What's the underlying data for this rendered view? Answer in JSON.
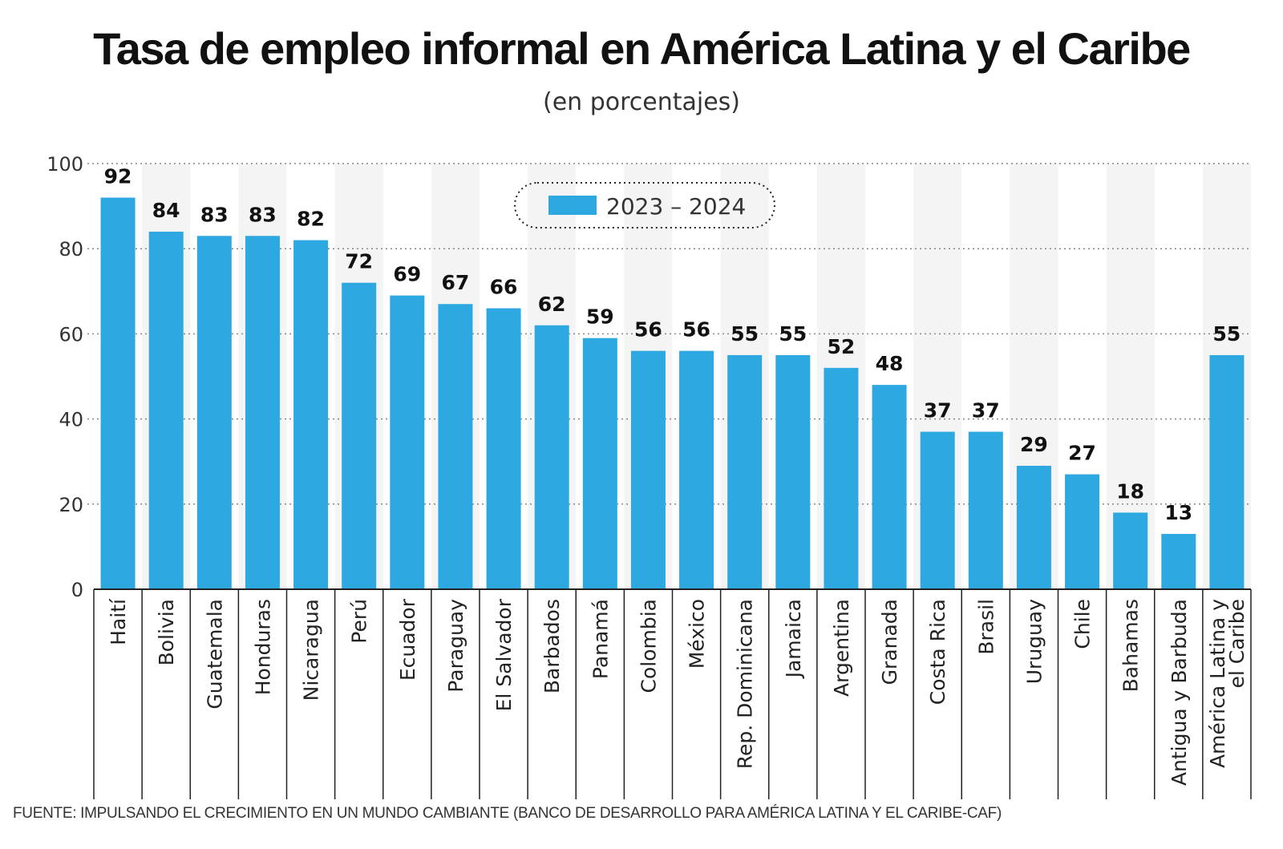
{
  "title": "Tasa de empleo informal en América Latina y el Caribe",
  "subtitle": "(en porcentajes)",
  "source": "FUENTE: IMPULSANDO EL CRECIMIENTO EN UN MUNDO CAMBIANTE (BANCO DE DESARROLLO PARA AMÉRICA LATINA Y EL CARIBE-CAF)",
  "colors": {
    "bar": "#2ea8e0",
    "band": "#f4f4f4",
    "axis": "#222222",
    "grid": "#888888"
  },
  "chart_data": {
    "type": "bar",
    "title": "Tasa de empleo informal en América Latina y el Caribe",
    "subtitle": "(en porcentajes)",
    "categories": [
      [
        "Haití"
      ],
      [
        "Bolivia"
      ],
      [
        "Guatemala"
      ],
      [
        "Honduras"
      ],
      [
        "Nicaragua"
      ],
      [
        "Perú"
      ],
      [
        "Ecuador"
      ],
      [
        "Paraguay"
      ],
      [
        "El Salvador"
      ],
      [
        "Barbados"
      ],
      [
        "Panamá"
      ],
      [
        "Colombia"
      ],
      [
        "México"
      ],
      [
        "Rep. Dominicana"
      ],
      [
        "Jamaica"
      ],
      [
        "Argentina"
      ],
      [
        "Granada"
      ],
      [
        "Costa Rica"
      ],
      [
        "Brasil"
      ],
      [
        "Uruguay"
      ],
      [
        "Chile"
      ],
      [
        "Bahamas"
      ],
      [
        "Antigua y Barbuda"
      ],
      [
        "América Latina y",
        "el Caribe"
      ]
    ],
    "series": [
      {
        "name": "2023 – 2024",
        "values": [
          92,
          84,
          83,
          83,
          82,
          72,
          69,
          67,
          66,
          62,
          59,
          56,
          56,
          55,
          55,
          52,
          48,
          37,
          37,
          29,
          27,
          18,
          13,
          55
        ]
      }
    ],
    "ylim": [
      0,
      100
    ],
    "yticks": [
      0,
      20,
      40,
      60,
      80,
      100
    ],
    "grid": "horizontal dotted",
    "legend": "top-center",
    "data_labels": true
  }
}
